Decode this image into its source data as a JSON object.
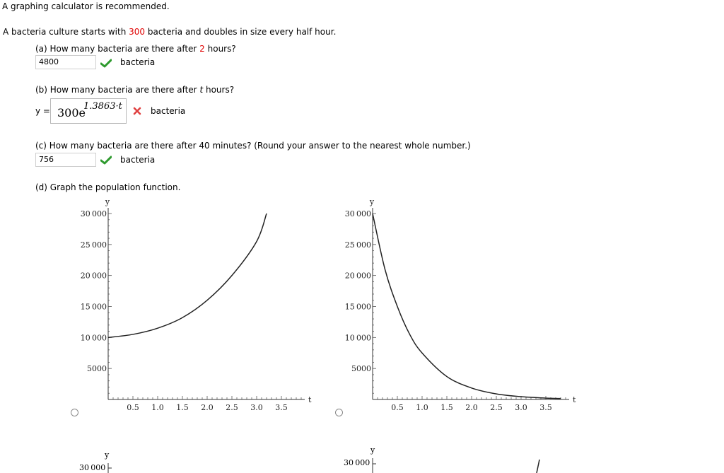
{
  "header": {
    "note": "A graphing calculator is recommended."
  },
  "problem": {
    "intro_before": "A bacteria culture starts with ",
    "intro_value": "300",
    "intro_after": " bacteria and doubles in size every half hour."
  },
  "part_a": {
    "question_before": "(a) How many bacteria are there after ",
    "question_value": "2",
    "question_after": " hours?",
    "answer": "4800",
    "unit": "bacteria",
    "status": "correct"
  },
  "part_b": {
    "question_before": "(b) How many bacteria are there after ",
    "question_var": "t",
    "question_after": " hours?",
    "y_label": "y =",
    "answer_base": "300e",
    "answer_exponent": "1.3863·t",
    "unit": "bacteria",
    "status": "incorrect"
  },
  "part_c": {
    "question": "(c) How many bacteria are there after 40 minutes? (Round your answer to the nearest whole number.)",
    "answer": "756",
    "unit": "bacteria",
    "status": "correct"
  },
  "part_d": {
    "question": "(d) Graph the population function."
  },
  "graphs": {
    "x_label": "t",
    "y_label": "y",
    "x_ticks": [
      "0.5",
      "1.0",
      "1.5",
      "2.0",
      "2.5",
      "3.0",
      "3.5"
    ],
    "y_ticks": [
      "30 000",
      "25 000",
      "20 000",
      "15 000",
      "10 000",
      "5000"
    ],
    "bottom_left_top_tick": "30 000",
    "bottom_right_top_tick": "30 000"
  },
  "chart_data": [
    {
      "type": "line",
      "name": "graph-option-1",
      "xlabel": "t",
      "ylabel": "y",
      "xlim": [
        0,
        4
      ],
      "ylim": [
        0,
        30000
      ],
      "x": [
        0,
        0.5,
        1.0,
        1.5,
        2.0,
        2.5,
        3.0,
        3.2
      ],
      "y": [
        10000,
        10500,
        11500,
        13200,
        16000,
        20000,
        25500,
        30000
      ],
      "grid": false
    },
    {
      "type": "line",
      "name": "graph-option-2",
      "xlabel": "t",
      "ylabel": "y",
      "xlim": [
        0,
        4
      ],
      "ylim": [
        0,
        30000
      ],
      "x": [
        0,
        0.25,
        0.5,
        0.75,
        1.0,
        1.5,
        2.0,
        2.5,
        3.0,
        3.5,
        3.8
      ],
      "y": [
        30000,
        21000,
        15000,
        10500,
        7500,
        3700,
        1850,
        900,
        450,
        220,
        150
      ],
      "grid": false
    }
  ]
}
